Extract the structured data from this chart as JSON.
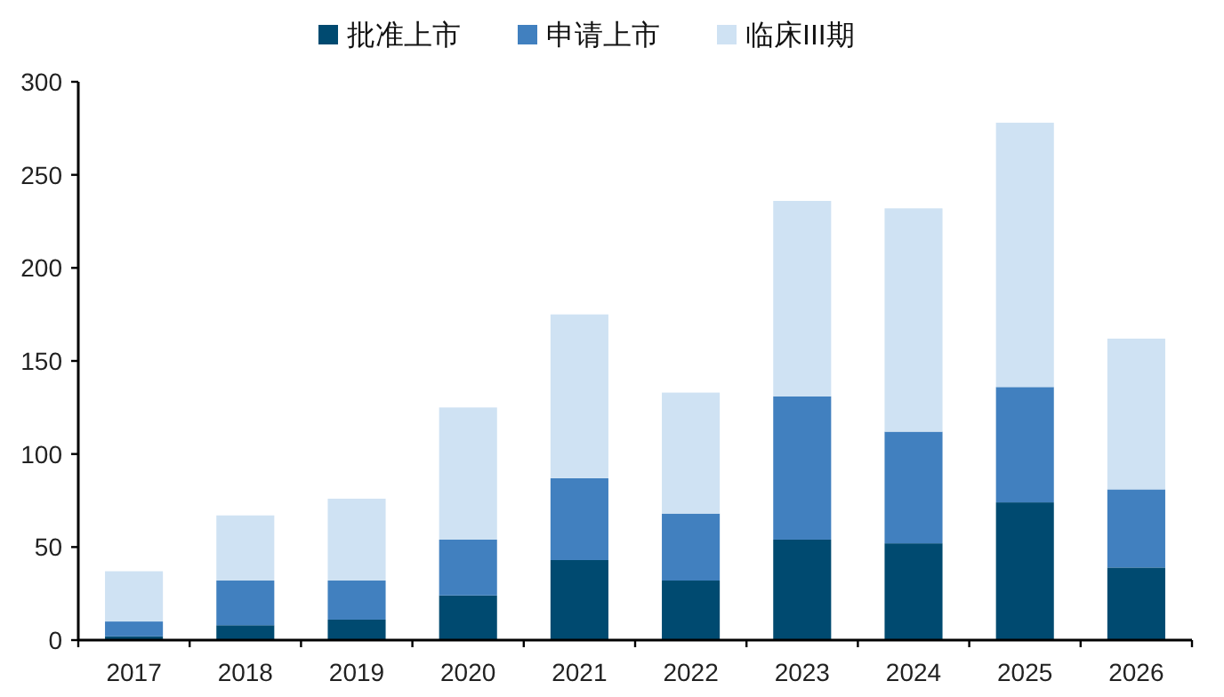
{
  "chart_data": {
    "type": "bar",
    "stacked": true,
    "categories": [
      "2017",
      "2018",
      "2019",
      "2020",
      "2021",
      "2022",
      "2023",
      "2024",
      "2025",
      "2026"
    ],
    "series": [
      {
        "name": "批准上市",
        "color": "#004a70",
        "values": [
          2,
          8,
          11,
          24,
          43,
          32,
          54,
          52,
          74,
          39
        ]
      },
      {
        "name": "申请上市",
        "color": "#4180bf",
        "values": [
          8,
          24,
          21,
          30,
          44,
          36,
          77,
          60,
          62,
          42
        ]
      },
      {
        "name": "临床III期",
        "color": "#cfe2f3",
        "values": [
          27,
          35,
          44,
          71,
          88,
          65,
          105,
          120,
          142,
          81
        ]
      }
    ],
    "ylim": [
      0,
      300
    ],
    "yticks": [
      0,
      50,
      100,
      150,
      200,
      250,
      300
    ],
    "grid": false,
    "legend": "top"
  }
}
